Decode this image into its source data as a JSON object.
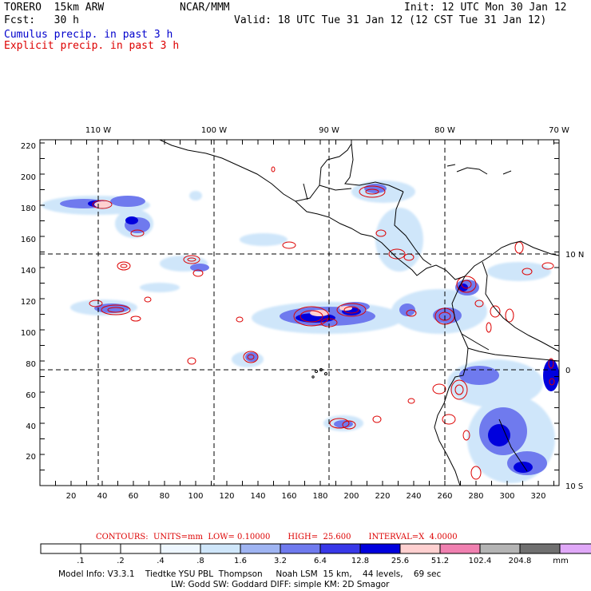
{
  "header": {
    "model": "TORERO  15km ARW",
    "org": "NCAR/MMM",
    "init": "Init: 12 UTC Mon 30 Jan 12",
    "fcst": "Fcst:   30 h",
    "valid": "Valid: 18 UTC Tue 31 Jan 12 (12 CST Tue 31 Jan 12)",
    "cumulus_label": "Cumulus precip. in past 3 h",
    "explicit_label": "Explicit precip. in past 3 h"
  },
  "colors": {
    "cumulus": "#0000cc",
    "explicit": "#dd0000",
    "coast": "#000000"
  },
  "map": {
    "top_lon_labels": [
      "110 W",
      "100 W",
      "90 W",
      "80 W",
      "70 W"
    ],
    "right_lat_labels": [
      "10 N",
      "0",
      "10 S"
    ],
    "left_y_ticks": [
      "20",
      "40",
      "60",
      "80",
      "100",
      "120",
      "140",
      "160",
      "180",
      "200",
      "220"
    ],
    "bottom_x_ticks": [
      "20",
      "40",
      "60",
      "80",
      "100",
      "120",
      "140",
      "160",
      "180",
      "200",
      "220",
      "240",
      "260",
      "280",
      "300",
      "320"
    ]
  },
  "contour_info": {
    "contours": "CONTOURS:  UNITS=mm  LOW= 0.10000",
    "high": "HIGH=  25.600",
    "interval": "INTERVAL=X  4.0000"
  },
  "colorbar": {
    "labels": [
      ".1",
      ".2",
      ".4",
      ".8",
      "1.6",
      "3.2",
      "6.4",
      "12.8",
      "25.6",
      "51.2",
      "102.4",
      "204.8"
    ],
    "unit": "mm",
    "colors": [
      "#ffffff",
      "#ffffff",
      "#ffffff",
      "#eef7ff",
      "#cfe6fa",
      "#9fb4f2",
      "#6f7aee",
      "#3838e8",
      "#0000dd",
      "#ffd0d0",
      "#f080b0",
      "#b4b4b4",
      "#707070",
      "#e0a8f8"
    ]
  },
  "footer": {
    "line1": "Model Info: V3.3.1    Tiedtke YSU PBL  Thompson     Noah LSM  15 km,    44 levels,    69 sec",
    "line2": "LW: Godd SW: Goddard DIFF: simple KM: 2D Smagor"
  }
}
